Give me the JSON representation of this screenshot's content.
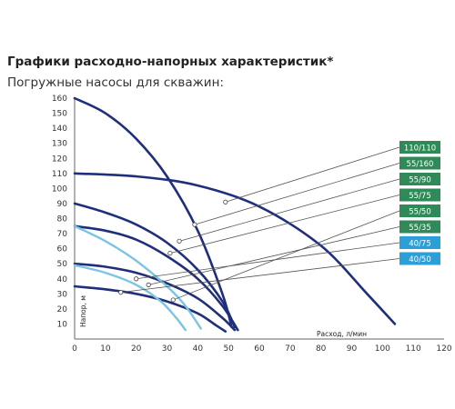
{
  "header": {
    "title": "Графики расходно-напорных характеристик*",
    "subtitle": "Погружные насосы для скважин:"
  },
  "chart_data": {
    "type": "line",
    "title": "Графики расходно-напорных характеристик*",
    "subtitle": "Погружные насосы для скважин:",
    "xlabel": "Расход, л/мин",
    "ylabel": "Напор, м",
    "xlim": [
      0,
      120
    ],
    "ylim": [
      0,
      160
    ],
    "x_ticks": [
      "0",
      "10",
      "20",
      "30",
      "40",
      "50",
      "60",
      "70",
      "80",
      "90",
      "100",
      "110",
      "120"
    ],
    "y_ticks": [
      "10",
      "20",
      "30",
      "40",
      "50",
      "60",
      "70",
      "80",
      "90",
      "100",
      "110",
      "120",
      "130",
      "140",
      "150",
      "160"
    ],
    "grid": false,
    "legend": "right, labelled boxes with leader lines",
    "colors": {
      "dark": "#1f2f7a",
      "light": "#7cc4e4",
      "green": "#2e8b57",
      "blue": "#2b9fd8",
      "leader": "#555555"
    },
    "series": [
      {
        "name": "110/110",
        "color": "dark",
        "label_color": "green",
        "points": [
          [
            0,
            110
          ],
          [
            20,
            108
          ],
          [
            40,
            102
          ],
          [
            60,
            88
          ],
          [
            80,
            62
          ],
          [
            95,
            30
          ],
          [
            104,
            10
          ]
        ],
        "marker": [
          49,
          91
        ]
      },
      {
        "name": "55/160",
        "color": "dark",
        "label_color": "green",
        "points": [
          [
            0,
            160
          ],
          [
            10,
            150
          ],
          [
            20,
            133
          ],
          [
            30,
            108
          ],
          [
            40,
            72
          ],
          [
            48,
            30
          ],
          [
            51,
            8
          ]
        ],
        "marker": [
          39,
          76
        ]
      },
      {
        "name": "55/90",
        "color": "dark",
        "label_color": "green",
        "points": [
          [
            0,
            90
          ],
          [
            10,
            84
          ],
          [
            20,
            76
          ],
          [
            30,
            64
          ],
          [
            40,
            46
          ],
          [
            48,
            25
          ],
          [
            52,
            8
          ]
        ],
        "marker": [
          34,
          65
        ]
      },
      {
        "name": "55/75",
        "color": "dark",
        "label_color": "green",
        "points": [
          [
            0,
            75
          ],
          [
            10,
            72
          ],
          [
            20,
            66
          ],
          [
            30,
            55
          ],
          [
            40,
            40
          ],
          [
            48,
            22
          ],
          [
            53,
            6
          ]
        ],
        "marker": [
          31,
          57
        ]
      },
      {
        "name": "55/50",
        "color": "dark",
        "label_color": "green",
        "points": [
          [
            0,
            50
          ],
          [
            10,
            48
          ],
          [
            20,
            44
          ],
          [
            30,
            37
          ],
          [
            40,
            27
          ],
          [
            48,
            14
          ],
          [
            52,
            6
          ]
        ],
        "marker": [
          32,
          26
        ]
      },
      {
        "name": "55/35",
        "color": "dark",
        "label_color": "green",
        "points": [
          [
            0,
            35
          ],
          [
            10,
            33
          ],
          [
            20,
            30
          ],
          [
            30,
            25
          ],
          [
            40,
            17
          ],
          [
            46,
            9
          ],
          [
            49,
            5
          ]
        ],
        "marker": [
          24,
          36
        ]
      },
      {
        "name": "40/75",
        "color": "light",
        "label_color": "blue",
        "points": [
          [
            0,
            75
          ],
          [
            10,
            65
          ],
          [
            20,
            52
          ],
          [
            30,
            35
          ],
          [
            36,
            22
          ],
          [
            41,
            7
          ]
        ],
        "marker": [
          20,
          40
        ]
      },
      {
        "name": "40/50",
        "color": "light",
        "label_color": "blue",
        "points": [
          [
            0,
            49
          ],
          [
            10,
            44
          ],
          [
            20,
            36
          ],
          [
            28,
            25
          ],
          [
            33,
            14
          ],
          [
            36,
            6
          ]
        ],
        "marker": [
          15,
          31
        ]
      }
    ],
    "label_order": [
      "110/110",
      "55/160",
      "55/90",
      "55/75",
      "55/50",
      "55/35",
      "40/75",
      "40/50"
    ]
  }
}
